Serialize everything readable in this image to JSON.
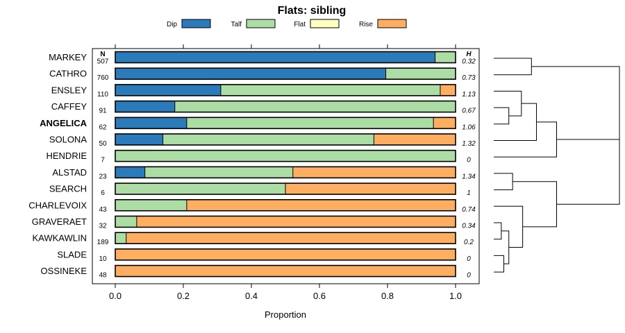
{
  "chart_data": {
    "type": "bar",
    "stacked": true,
    "orientation": "horizontal",
    "title": "Flats: sibling",
    "xlabel": "Proportion",
    "xlim": [
      0,
      1
    ],
    "xticks": [
      "0.0",
      "0.2",
      "0.4",
      "0.6",
      "0.8",
      "1.0"
    ],
    "n_header": "N",
    "h_header": "H",
    "legend": [
      {
        "name": "Dip",
        "color": "#2b7bba"
      },
      {
        "name": "Talf",
        "color": "#abdda4"
      },
      {
        "name": "Flat",
        "color": "#ffffbf"
      },
      {
        "name": "Rise",
        "color": "#fdae61"
      }
    ],
    "rows": [
      {
        "label": "MARKEY",
        "n": "507",
        "h": "0.32",
        "bold": false,
        "values": [
          0.94,
          0.06,
          0,
          0
        ]
      },
      {
        "label": "CATHRO",
        "n": "760",
        "h": "0.73",
        "bold": false,
        "values": [
          0.795,
          0.205,
          0,
          0
        ]
      },
      {
        "label": "ENSLEY",
        "n": "110",
        "h": "1.13",
        "bold": false,
        "values": [
          0.31,
          0.645,
          0,
          0.045
        ]
      },
      {
        "label": "CAFFEY",
        "n": "91",
        "h": "0.67",
        "bold": false,
        "values": [
          0.175,
          0.825,
          0,
          0
        ]
      },
      {
        "label": "ANGELICA",
        "n": "62",
        "h": "1.06",
        "bold": true,
        "values": [
          0.21,
          0.725,
          0,
          0.065
        ]
      },
      {
        "label": "SOLONA",
        "n": "50",
        "h": "1.32",
        "bold": false,
        "values": [
          0.14,
          0.62,
          0,
          0.24
        ]
      },
      {
        "label": "HENDRIE",
        "n": "7",
        "h": "0",
        "bold": false,
        "values": [
          0,
          1,
          0,
          0
        ]
      },
      {
        "label": "ALSTAD",
        "n": "23",
        "h": "1.34",
        "bold": false,
        "values": [
          0.087,
          0.435,
          0,
          0.478
        ]
      },
      {
        "label": "SEARCH",
        "n": "6",
        "h": "1",
        "bold": false,
        "values": [
          0,
          0.5,
          0,
          0.5
        ]
      },
      {
        "label": "CHARLEVOIX",
        "n": "43",
        "h": "0.74",
        "bold": false,
        "values": [
          0,
          0.21,
          0,
          0.79
        ]
      },
      {
        "label": "GRAVERAET",
        "n": "32",
        "h": "0.34",
        "bold": false,
        "values": [
          0,
          0.063,
          0,
          0.937
        ]
      },
      {
        "label": "KAWKAWLIN",
        "n": "189",
        "h": "0.2",
        "bold": false,
        "values": [
          0,
          0.032,
          0,
          0.968
        ]
      },
      {
        "label": "SLADE",
        "n": "10",
        "h": "0",
        "bold": false,
        "values": [
          0,
          0,
          0,
          1
        ]
      },
      {
        "label": "OSSINEKE",
        "n": "48",
        "h": "0",
        "bold": false,
        "values": [
          0,
          0,
          0,
          1
        ]
      }
    ],
    "dendrogram": {
      "leaf_order": [
        "MARKEY",
        "CATHRO",
        "ENSLEY",
        "CAFFEY",
        "ANGELICA",
        "SOLONA",
        "HENDRIE",
        "ALSTAD",
        "SEARCH",
        "CHARLEVOIX",
        "GRAVERAET",
        "KAWKAWLIN",
        "SLADE",
        "OSSINEKE"
      ],
      "merges": [
        {
          "left": 0,
          "right": 1,
          "height": 0.3
        },
        {
          "left": 3,
          "right": 4,
          "height": 0.12
        },
        {
          "left": 2,
          "right": "m1",
          "height": 0.22
        },
        {
          "left": "m2",
          "right": 5,
          "height": 0.34
        },
        {
          "left": "m3",
          "right": 6,
          "height": 0.5
        },
        {
          "left": "m0",
          "right": "m4",
          "height": 1.0
        },
        {
          "left": 7,
          "right": 8,
          "height": 0.15
        },
        {
          "left": 10,
          "right": 11,
          "height": 0.06
        },
        {
          "left": 12,
          "right": 13,
          "height": 0.08
        },
        {
          "left": "m7",
          "right": "m8",
          "height": 0.12
        },
        {
          "left": 9,
          "right": "m9",
          "height": 0.23
        },
        {
          "left": "m6",
          "right": "m10",
          "height": 0.5
        },
        {
          "left": "m5",
          "right": "m11",
          "height": 1.0
        }
      ]
    }
  }
}
